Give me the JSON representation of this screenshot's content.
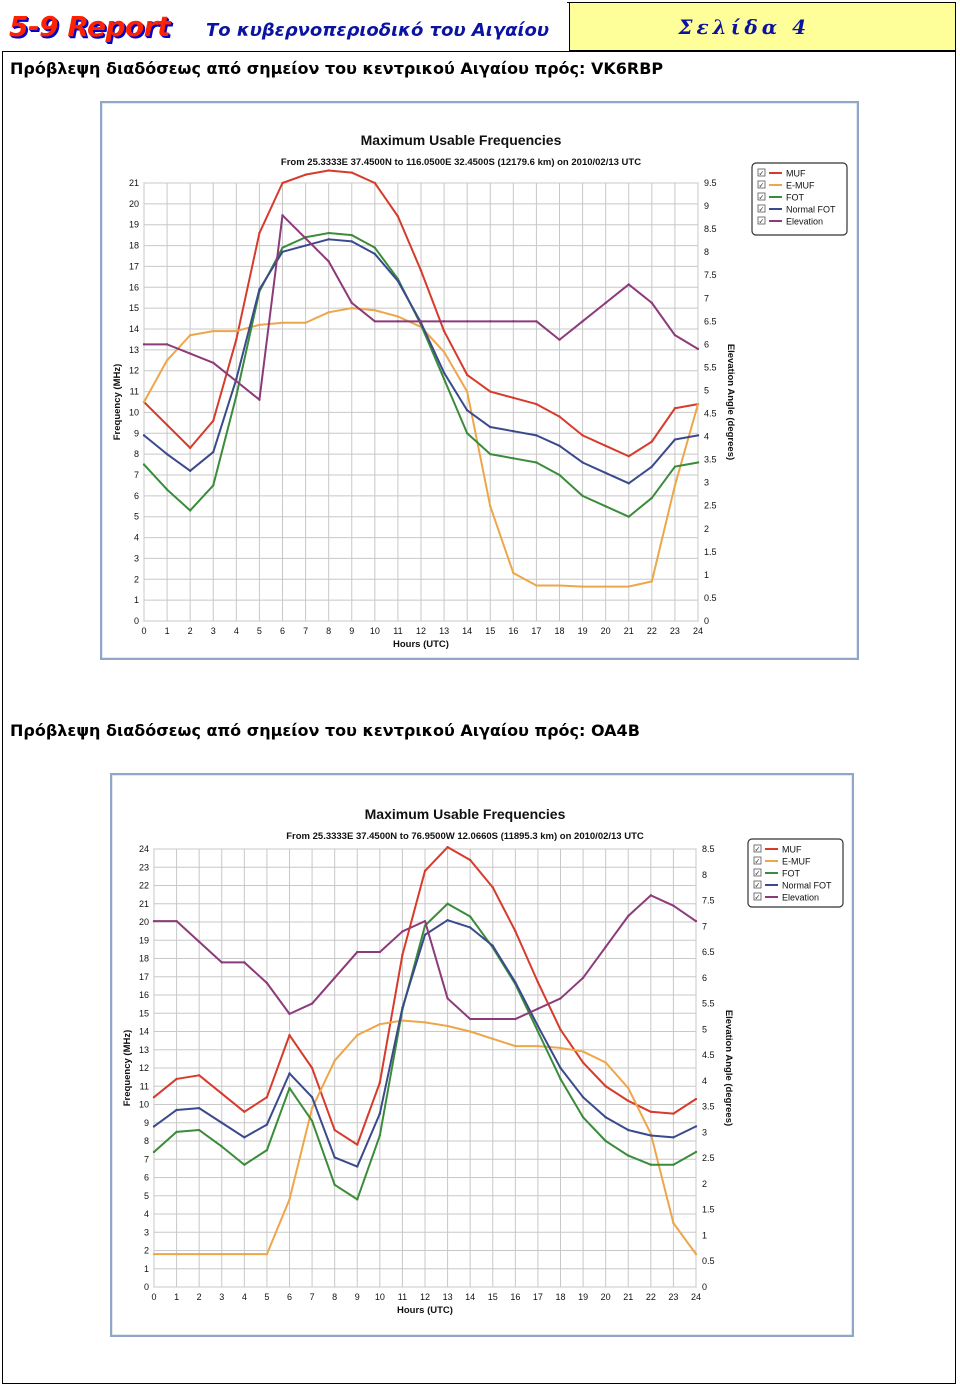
{
  "header": {
    "brand": "5-9 Report",
    "subtitle": "Το κυβερνοπεριοδικό του Αιγαίου",
    "page_label": "Σελίδα",
    "page_number": "4"
  },
  "sections": [
    {
      "title": "Πρόβλεψη διαδόσεως από σημείον του κεντρικού Αιγαίου πρός:  VK6RBP"
    },
    {
      "title": "Πρόβλεψη διαδόσεως από σημείον του κεντρικού Αιγαίου πρός:  OA4B"
    }
  ],
  "colors": {
    "MUF": "#d63b2c",
    "E-MUF": "#eea64a",
    "FOT": "#3a8c3a",
    "Normal FOT": "#3a4a8c",
    "Elevation": "#8c3a7a"
  },
  "chart_data": [
    {
      "type": "line",
      "title": "Maximum Usable Frequencies",
      "subtitle": "From  25.3333E 37.4500N to 116.0500E 32.4500S (12179.6 km) on 2010/02/13 UTC",
      "xlabel": "Hours (UTC)",
      "ylabel": "Frequency (MHz)",
      "y2label": "Elevation Angle (degrees)",
      "xlim": [
        0,
        24
      ],
      "ylim": [
        0,
        21
      ],
      "y2lim": [
        0,
        9.5
      ],
      "xticks": [
        "0",
        "1",
        "2",
        "3",
        "4",
        "5",
        "6",
        "7",
        "8",
        "9",
        "10",
        "11",
        "12",
        "13",
        "14",
        "15",
        "16",
        "17",
        "18",
        "19",
        "20",
        "21",
        "22",
        "23",
        "24"
      ],
      "yticks": [
        "0",
        "1",
        "2",
        "3",
        "4",
        "5",
        "6",
        "7",
        "8",
        "9",
        "10",
        "11",
        "12",
        "13",
        "14",
        "15",
        "16",
        "17",
        "18",
        "19",
        "20",
        "21"
      ],
      "y2ticks": [
        "0",
        "0.5",
        "1",
        "1.5",
        "2",
        "2.5",
        "3",
        "3.5",
        "4",
        "4.5",
        "5",
        "5.5",
        "6",
        "6.5",
        "7",
        "7.5",
        "8",
        "8.5",
        "9",
        "9.5"
      ],
      "grid": true,
      "legend_position": "top-right",
      "legend": [
        "MUF",
        "E-MUF",
        "FOT",
        "Normal FOT",
        "Elevation"
      ],
      "x": [
        0,
        1,
        2,
        3,
        4,
        5,
        6,
        7,
        8,
        9,
        10,
        11,
        12,
        13,
        14,
        15,
        16,
        17,
        18,
        19,
        20,
        21,
        22,
        23,
        24
      ],
      "series": [
        {
          "name": "MUF",
          "axis": "left",
          "values": [
            10.5,
            9.4,
            8.3,
            9.6,
            13.5,
            18.6,
            21.0,
            21.4,
            21.6,
            21.5,
            21.0,
            19.4,
            16.8,
            13.9,
            11.8,
            11.0,
            10.7,
            10.4,
            9.8,
            8.9,
            8.4,
            7.9,
            8.6,
            10.2,
            10.4
          ]
        },
        {
          "name": "E-MUF",
          "axis": "left",
          "values": [
            10.5,
            12.5,
            13.7,
            13.9,
            13.9,
            14.2,
            14.3,
            14.3,
            14.8,
            15.0,
            14.9,
            14.6,
            14.1,
            12.9,
            11.0,
            5.5,
            2.3,
            1.7,
            1.7,
            1.65,
            1.65,
            1.65,
            1.9,
            6.5,
            10.4
          ]
        },
        {
          "name": "FOT",
          "axis": "left",
          "values": [
            7.5,
            6.3,
            5.3,
            6.5,
            10.8,
            15.8,
            17.9,
            18.4,
            18.6,
            18.5,
            17.9,
            16.4,
            14.2,
            11.6,
            9.0,
            8.0,
            7.8,
            7.6,
            7.0,
            6.0,
            5.5,
            5.0,
            5.9,
            7.4,
            7.6
          ]
        },
        {
          "name": "Normal FOT",
          "axis": "left",
          "values": [
            8.9,
            8.0,
            7.2,
            8.1,
            11.6,
            15.9,
            17.7,
            18.0,
            18.3,
            18.2,
            17.6,
            16.3,
            14.3,
            11.9,
            10.1,
            9.3,
            9.1,
            8.9,
            8.4,
            7.6,
            7.1,
            6.6,
            7.4,
            8.7,
            8.9
          ]
        },
        {
          "name": "Elevation",
          "axis": "right",
          "values": [
            6.0,
            6.0,
            5.8,
            5.6,
            5.2,
            4.8,
            8.8,
            8.3,
            7.8,
            6.9,
            6.5,
            6.5,
            6.5,
            6.5,
            6.5,
            6.5,
            6.5,
            6.5,
            6.1,
            6.5,
            6.9,
            7.3,
            6.9,
            6.2,
            5.9
          ]
        }
      ]
    },
    {
      "type": "line",
      "title": "Maximum Usable Frequencies",
      "subtitle": "From  25.3333E 37.4500N to  76.9500W 12.0660S (11895.3 km) on 2010/02/13 UTC",
      "xlabel": "Hours (UTC)",
      "ylabel": "Frequency (MHz)",
      "y2label": "Elevation Angle (degrees)",
      "xlim": [
        0,
        24
      ],
      "ylim": [
        0,
        24
      ],
      "y2lim": [
        0,
        8.5
      ],
      "xticks": [
        "0",
        "1",
        "2",
        "3",
        "4",
        "5",
        "6",
        "7",
        "8",
        "9",
        "10",
        "11",
        "12",
        "13",
        "14",
        "15",
        "16",
        "17",
        "18",
        "19",
        "20",
        "21",
        "22",
        "23",
        "24"
      ],
      "yticks": [
        "0",
        "1",
        "2",
        "3",
        "4",
        "5",
        "6",
        "7",
        "8",
        "9",
        "10",
        "11",
        "12",
        "13",
        "14",
        "15",
        "16",
        "17",
        "18",
        "19",
        "20",
        "21",
        "22",
        "23",
        "24"
      ],
      "y2ticks": [
        "0",
        "0.5",
        "1",
        "1.5",
        "2",
        "2.5",
        "3",
        "3.5",
        "4",
        "4.5",
        "5",
        "5.5",
        "6",
        "6.5",
        "7",
        "7.5",
        "8",
        "8.5"
      ],
      "grid": true,
      "legend_position": "top-right",
      "legend": [
        "MUF",
        "E-MUF",
        "FOT",
        "Normal FOT",
        "Elevation"
      ],
      "x": [
        0,
        1,
        2,
        3,
        4,
        5,
        6,
        7,
        8,
        9,
        10,
        11,
        12,
        13,
        14,
        15,
        16,
        17,
        18,
        19,
        20,
        21,
        22,
        23,
        24
      ],
      "series": [
        {
          "name": "MUF",
          "axis": "left",
          "values": [
            10.4,
            11.4,
            11.6,
            10.6,
            9.6,
            10.4,
            13.8,
            12.0,
            8.6,
            7.8,
            11.2,
            18.2,
            22.8,
            24.1,
            23.4,
            21.9,
            19.5,
            16.7,
            14.1,
            12.3,
            11.0,
            10.2,
            9.6,
            9.5,
            10.3
          ]
        },
        {
          "name": "E-MUF",
          "axis": "left",
          "values": [
            1.8,
            1.8,
            1.8,
            1.8,
            1.8,
            1.8,
            4.8,
            9.8,
            12.4,
            13.8,
            14.4,
            14.6,
            14.5,
            14.3,
            14.0,
            13.6,
            13.2,
            13.2,
            13.1,
            12.9,
            12.3,
            10.9,
            8.4,
            3.5,
            1.8
          ]
        },
        {
          "name": "FOT",
          "axis": "left",
          "values": [
            7.4,
            8.5,
            8.6,
            7.7,
            6.7,
            7.5,
            10.9,
            9.1,
            5.6,
            4.8,
            8.3,
            15.2,
            19.8,
            21.0,
            20.3,
            18.6,
            16.6,
            14.0,
            11.4,
            9.3,
            8.0,
            7.2,
            6.7,
            6.7,
            7.4
          ]
        },
        {
          "name": "Normal FOT",
          "axis": "left",
          "values": [
            8.8,
            9.7,
            9.8,
            9.0,
            8.2,
            8.9,
            11.7,
            10.4,
            7.1,
            6.6,
            9.5,
            15.3,
            19.3,
            20.1,
            19.7,
            18.7,
            16.7,
            14.3,
            12.0,
            10.4,
            9.3,
            8.6,
            8.3,
            8.2,
            8.8
          ]
        },
        {
          "name": "Elevation",
          "axis": "right",
          "values": [
            7.1,
            7.1,
            6.7,
            6.3,
            6.3,
            5.9,
            5.3,
            5.5,
            6.0,
            6.5,
            6.5,
            6.9,
            7.1,
            5.6,
            5.2,
            5.2,
            5.2,
            5.4,
            5.6,
            6.0,
            6.6,
            7.2,
            7.6,
            7.4,
            7.1
          ]
        }
      ]
    }
  ]
}
